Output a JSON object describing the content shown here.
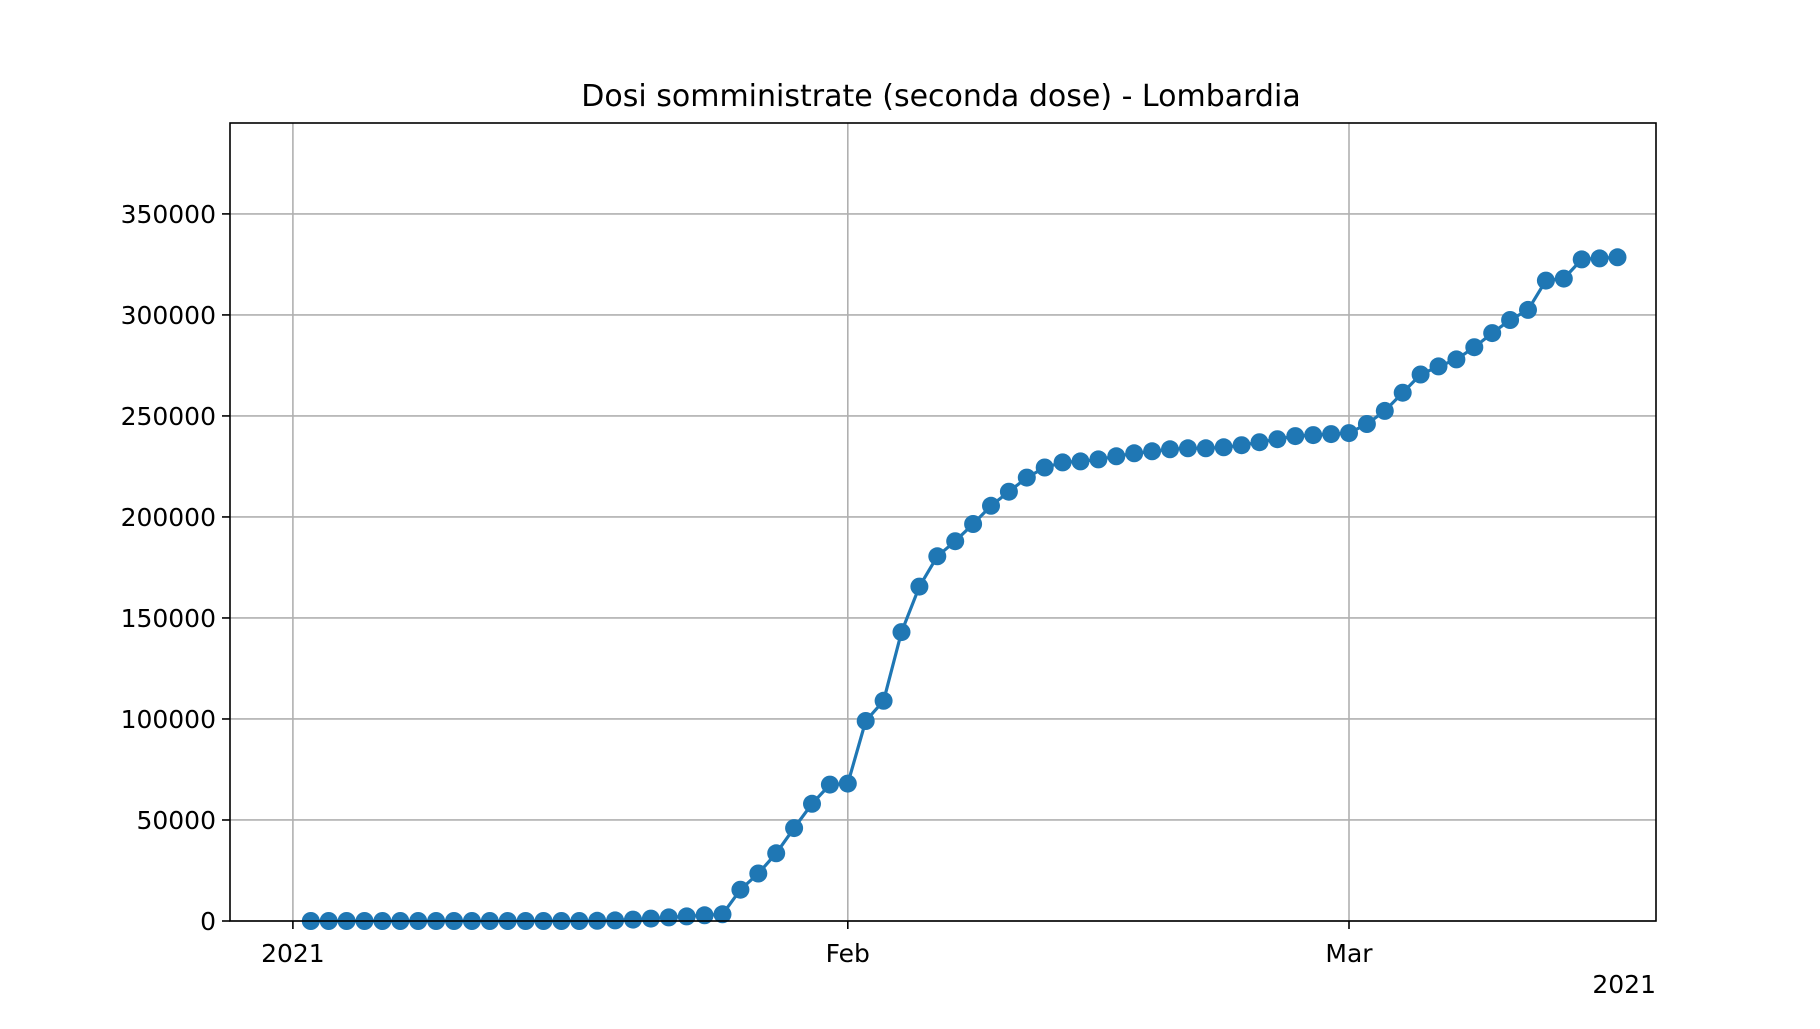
{
  "chart_data": {
    "type": "line",
    "title": "Dosi somministrate (seconda dose) - Lombardia",
    "xlabel": "",
    "ylabel": "",
    "x_tick_labels": [
      "2021",
      "Feb",
      "Mar"
    ],
    "x_offset_label": "2021",
    "y_tick_labels": [
      "0",
      "50000",
      "100000",
      "150000",
      "200000",
      "250000",
      "300000",
      "350000"
    ],
    "ylim": [
      0,
      395000
    ],
    "grid": true,
    "legend": "none",
    "color": "#1f77b4",
    "series": [
      {
        "x": [
          "2021-01-02",
          "2021-01-03",
          "2021-01-04",
          "2021-01-05",
          "2021-01-06",
          "2021-01-07",
          "2021-01-08",
          "2021-01-09",
          "2021-01-10",
          "2021-01-11",
          "2021-01-12",
          "2021-01-13",
          "2021-01-14",
          "2021-01-15",
          "2021-01-16",
          "2021-01-17",
          "2021-01-18",
          "2021-01-19",
          "2021-01-20",
          "2021-01-21",
          "2021-01-22",
          "2021-01-23",
          "2021-01-24",
          "2021-01-25",
          "2021-01-26",
          "2021-01-27",
          "2021-01-28",
          "2021-01-29",
          "2021-01-30",
          "2021-01-31",
          "2021-02-01",
          "2021-02-02",
          "2021-02-03",
          "2021-02-04",
          "2021-02-05",
          "2021-02-06",
          "2021-02-07",
          "2021-02-08",
          "2021-02-09",
          "2021-02-10",
          "2021-02-11",
          "2021-02-12",
          "2021-02-13",
          "2021-02-14",
          "2021-02-15",
          "2021-02-16",
          "2021-02-17",
          "2021-02-18",
          "2021-02-19",
          "2021-02-20",
          "2021-02-21",
          "2021-02-22",
          "2021-02-23",
          "2021-02-24",
          "2021-02-25",
          "2021-02-26",
          "2021-02-27",
          "2021-02-28",
          "2021-03-01",
          "2021-03-02",
          "2021-03-03",
          "2021-03-04",
          "2021-03-05",
          "2021-03-06",
          "2021-03-07",
          "2021-03-08",
          "2021-03-09",
          "2021-03-10",
          "2021-03-11",
          "2021-03-12",
          "2021-03-13",
          "2021-03-14",
          "2021-03-15",
          "2021-03-16"
        ],
        "y": [
          0,
          0,
          0,
          0,
          0,
          0,
          0,
          0,
          0,
          0,
          0,
          0,
          0,
          0,
          0,
          0,
          100,
          300,
          700,
          1200,
          1800,
          2300,
          2800,
          3300,
          15500,
          23500,
          33500,
          46000,
          58000,
          67500,
          68000,
          99000,
          109000,
          143000,
          165500,
          180500,
          188000,
          196500,
          205500,
          212500,
          219500,
          224500,
          227000,
          227500,
          228500,
          230000,
          231500,
          232500,
          233500,
          234000,
          234000,
          234500,
          235500,
          237000,
          238500,
          240000,
          240500,
          241000,
          241500,
          246000,
          252500,
          261500,
          270500,
          274500,
          278000,
          284000,
          291000,
          297500,
          302500,
          317000,
          318000,
          327500,
          328000,
          328500
        ]
      }
    ]
  }
}
